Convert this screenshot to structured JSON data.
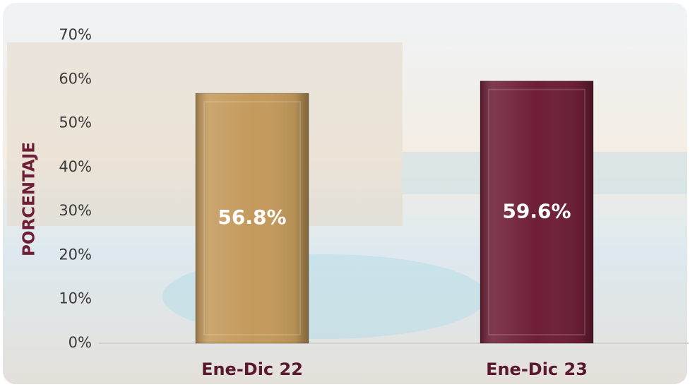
{
  "chart_data": {
    "type": "bar",
    "categories": [
      "Ene-Dic 22",
      "Ene-Dic 23"
    ],
    "values": [
      56.8,
      59.6
    ],
    "value_labels": [
      "56.8%",
      "59.6%"
    ],
    "colors": [
      "#c49a5c",
      "#6e1f37"
    ],
    "y_label": "PORCENTAJE",
    "ylim": [
      0,
      70
    ],
    "yticks": [
      {
        "value": 0,
        "label": "0%"
      },
      {
        "value": 10,
        "label": "10%"
      },
      {
        "value": 20,
        "label": "20%"
      },
      {
        "value": 30,
        "label": "30%"
      },
      {
        "value": 40,
        "label": "40%"
      },
      {
        "value": 50,
        "label": "50%"
      },
      {
        "value": 60,
        "label": "60%"
      },
      {
        "value": 70,
        "label": "70%"
      }
    ],
    "grid": false
  }
}
